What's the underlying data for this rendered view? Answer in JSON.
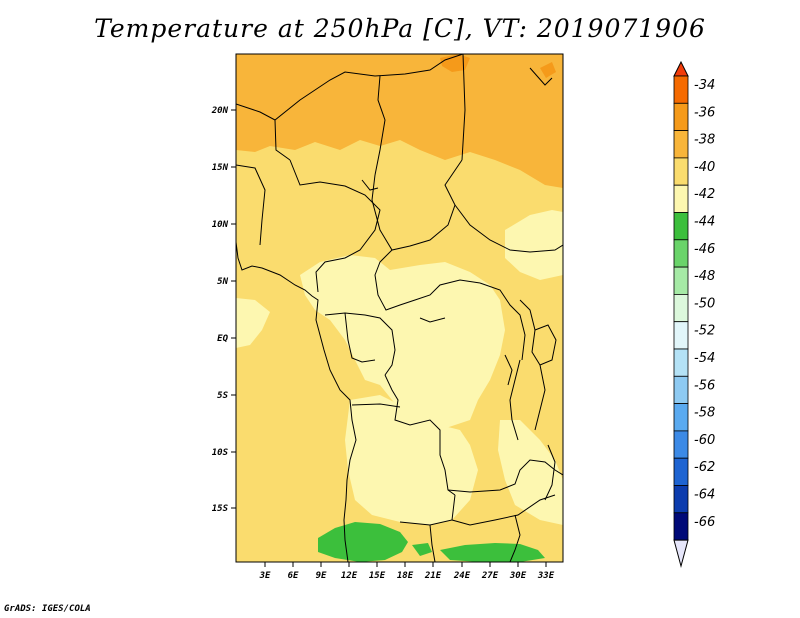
{
  "title": "Temperature at 250hPa [C], VT: 2019071906",
  "credit": "GrADS: IGES/COLA",
  "lat_labels": [
    "20N",
    "15N",
    "10N",
    "5N",
    "EQ",
    "5S",
    "10S",
    "15S"
  ],
  "lon_labels": [
    "3E",
    "6E",
    "9E",
    "12E",
    "15E",
    "18E",
    "21E",
    "24E",
    "27E",
    "30E",
    "33E"
  ],
  "colorbar": {
    "labels": [
      "-34",
      "-36",
      "-38",
      "-40",
      "-42",
      "-44",
      "-46",
      "-48",
      "-50",
      "-52",
      "-54",
      "-56",
      "-58",
      "-60",
      "-62",
      "-64",
      "-66"
    ],
    "colors": [
      "#f23c0a",
      "#f56a00",
      "#f59a1a",
      "#f8b53a",
      "#fadc6e",
      "#fdf7b0",
      "#3cbf3c",
      "#6ad46a",
      "#a6eaa6",
      "#dcf8dc",
      "#e2f6fa",
      "#b4e2f6",
      "#8ecaf2",
      "#5aaaf0",
      "#3c8ae6",
      "#1e64d2",
      "#0c3cae",
      "#000a78",
      "#e6e6fa"
    ]
  },
  "map": {
    "field_colors": {
      "-36": "#f59a1a",
      "-38": "#f8b53a",
      "-40": "#fadc6e",
      "-42": "#fdf7b0",
      "-44": "#3cbf3c"
    }
  }
}
